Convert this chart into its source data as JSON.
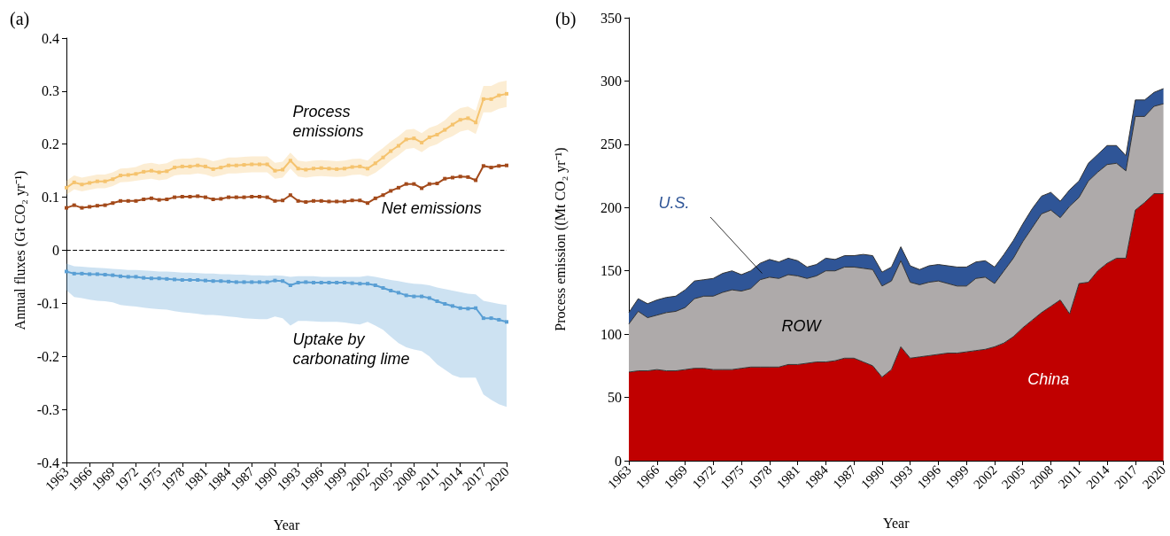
{
  "chart_data": [
    {
      "type": "line",
      "title": "(a)",
      "xlabel": "Year",
      "ylabel": "Annual fluxes (Gt CO₂ yr⁻¹)",
      "categories": [
        "1963",
        null,
        null,
        "1966",
        null,
        null,
        "1969",
        null,
        null,
        "1972",
        null,
        null,
        "1975",
        null,
        null,
        "1978",
        null,
        null,
        "1981",
        null,
        null,
        "1984",
        null,
        null,
        "1987",
        null,
        null,
        "1990",
        null,
        null,
        "1993",
        null,
        null,
        "1996",
        null,
        null,
        "1999",
        null,
        null,
        "2002",
        null,
        null,
        "2005",
        null,
        null,
        "2008",
        null,
        null,
        "2011",
        null,
        null,
        "2014",
        null,
        null,
        "2017",
        null,
        null,
        "2020"
      ],
      "ylim": [
        -0.4,
        0.4
      ],
      "yticks": [
        -0.4,
        -0.3,
        -0.2,
        -0.1,
        0,
        0.1,
        0.2,
        0.3,
        0.4
      ],
      "marker": "square",
      "legend": false,
      "ref_lines": [
        {
          "axis": "y",
          "value": 0,
          "line_style": "dashed",
          "color": "#000000"
        }
      ],
      "series": [
        {
          "name": "Process emissions",
          "color": "#f5c36e",
          "values": [
            0.118,
            0.128,
            0.124,
            0.127,
            0.13,
            0.13,
            0.134,
            0.141,
            0.142,
            0.144,
            0.148,
            0.15,
            0.147,
            0.149,
            0.156,
            0.158,
            0.158,
            0.16,
            0.158,
            0.153,
            0.156,
            0.16,
            0.16,
            0.161,
            0.162,
            0.162,
            0.162,
            0.15,
            0.152,
            0.169,
            0.154,
            0.152,
            0.154,
            0.155,
            0.154,
            0.153,
            0.154,
            0.157,
            0.158,
            0.154,
            0.164,
            0.175,
            0.187,
            0.197,
            0.209,
            0.211,
            0.203,
            0.213,
            0.218,
            0.227,
            0.237,
            0.246,
            0.249,
            0.241,
            0.285,
            0.285,
            0.292,
            0.295
          ],
          "lower": [
            0.105,
            0.115,
            0.111,
            0.114,
            0.117,
            0.117,
            0.121,
            0.128,
            0.129,
            0.131,
            0.133,
            0.135,
            0.132,
            0.134,
            0.141,
            0.143,
            0.143,
            0.145,
            0.143,
            0.138,
            0.141,
            0.145,
            0.145,
            0.146,
            0.147,
            0.147,
            0.147,
            0.135,
            0.137,
            0.154,
            0.139,
            0.137,
            0.139,
            0.14,
            0.139,
            0.138,
            0.139,
            0.142,
            0.143,
            0.139,
            0.146,
            0.157,
            0.169,
            0.179,
            0.191,
            0.193,
            0.185,
            0.195,
            0.2,
            0.209,
            0.215,
            0.224,
            0.227,
            0.219,
            0.26,
            0.26,
            0.267,
            0.27
          ],
          "upper": [
            0.131,
            0.141,
            0.137,
            0.14,
            0.143,
            0.143,
            0.147,
            0.154,
            0.155,
            0.157,
            0.163,
            0.165,
            0.162,
            0.164,
            0.171,
            0.173,
            0.173,
            0.175,
            0.173,
            0.168,
            0.171,
            0.175,
            0.175,
            0.176,
            0.177,
            0.177,
            0.177,
            0.165,
            0.167,
            0.184,
            0.169,
            0.167,
            0.169,
            0.17,
            0.169,
            0.168,
            0.169,
            0.172,
            0.173,
            0.169,
            0.182,
            0.193,
            0.205,
            0.215,
            0.227,
            0.229,
            0.221,
            0.231,
            0.236,
            0.245,
            0.259,
            0.268,
            0.271,
            0.263,
            0.31,
            0.31,
            0.317,
            0.32
          ]
        },
        {
          "name": "Net emissions",
          "color": "#a34a1b",
          "values": [
            0.08,
            0.085,
            0.08,
            0.082,
            0.084,
            0.085,
            0.089,
            0.093,
            0.093,
            0.093,
            0.096,
            0.098,
            0.095,
            0.096,
            0.1,
            0.101,
            0.101,
            0.102,
            0.1,
            0.096,
            0.097,
            0.1,
            0.1,
            0.1,
            0.101,
            0.101,
            0.1,
            0.093,
            0.094,
            0.104,
            0.093,
            0.091,
            0.093,
            0.093,
            0.092,
            0.092,
            0.092,
            0.094,
            0.094,
            0.089,
            0.098,
            0.104,
            0.112,
            0.118,
            0.125,
            0.125,
            0.117,
            0.125,
            0.126,
            0.135,
            0.137,
            0.139,
            0.138,
            0.132,
            0.159,
            0.156,
            0.159,
            0.16
          ]
        },
        {
          "name": "Uptake by carbonating lime",
          "color": "#5a9fd4",
          "values": [
            -0.04,
            -0.044,
            -0.044,
            -0.045,
            -0.045,
            -0.046,
            -0.047,
            -0.049,
            -0.05,
            -0.05,
            -0.052,
            -0.053,
            -0.053,
            -0.054,
            -0.055,
            -0.056,
            -0.056,
            -0.056,
            -0.057,
            -0.058,
            -0.058,
            -0.059,
            -0.06,
            -0.06,
            -0.06,
            -0.06,
            -0.06,
            -0.057,
            -0.058,
            -0.066,
            -0.061,
            -0.06,
            -0.061,
            -0.061,
            -0.061,
            -0.061,
            -0.061,
            -0.062,
            -0.063,
            -0.063,
            -0.066,
            -0.071,
            -0.076,
            -0.08,
            -0.085,
            -0.087,
            -0.087,
            -0.09,
            -0.096,
            -0.101,
            -0.105,
            -0.109,
            -0.11,
            -0.109,
            -0.128,
            -0.128,
            -0.131,
            -0.135
          ],
          "lower": [
            -0.075,
            -0.088,
            -0.09,
            -0.093,
            -0.095,
            -0.096,
            -0.098,
            -0.103,
            -0.105,
            -0.106,
            -0.108,
            -0.11,
            -0.111,
            -0.112,
            -0.115,
            -0.117,
            -0.118,
            -0.12,
            -0.122,
            -0.122,
            -0.123,
            -0.125,
            -0.126,
            -0.128,
            -0.129,
            -0.13,
            -0.13,
            -0.125,
            -0.128,
            -0.142,
            -0.133,
            -0.133,
            -0.134,
            -0.135,
            -0.135,
            -0.135,
            -0.136,
            -0.138,
            -0.14,
            -0.135,
            -0.142,
            -0.15,
            -0.163,
            -0.175,
            -0.183,
            -0.187,
            -0.19,
            -0.2,
            -0.215,
            -0.225,
            -0.235,
            -0.24,
            -0.24,
            -0.24,
            -0.272,
            -0.282,
            -0.29,
            -0.295
          ],
          "upper": [
            -0.025,
            -0.03,
            -0.031,
            -0.032,
            -0.033,
            -0.034,
            -0.035,
            -0.036,
            -0.037,
            -0.037,
            -0.038,
            -0.039,
            -0.04,
            -0.04,
            -0.041,
            -0.042,
            -0.042,
            -0.043,
            -0.044,
            -0.044,
            -0.045,
            -0.045,
            -0.046,
            -0.046,
            -0.047,
            -0.047,
            -0.048,
            -0.047,
            -0.048,
            -0.05,
            -0.049,
            -0.049,
            -0.049,
            -0.05,
            -0.05,
            -0.05,
            -0.05,
            -0.05,
            -0.05,
            -0.048,
            -0.05,
            -0.053,
            -0.056,
            -0.058,
            -0.061,
            -0.063,
            -0.064,
            -0.066,
            -0.07,
            -0.073,
            -0.076,
            -0.079,
            -0.082,
            -0.083,
            -0.095,
            -0.098,
            -0.101,
            -0.103
          ]
        }
      ]
    },
    {
      "type": "area",
      "title": "(b)",
      "xlabel": "Year",
      "ylabel": "Process emission ((Mt CO₂ yr⁻¹)",
      "stacked": true,
      "legend": false,
      "categories": [
        "1963",
        null,
        null,
        "1966",
        null,
        null,
        "1969",
        null,
        null,
        "1972",
        null,
        null,
        "1975",
        null,
        null,
        "1978",
        null,
        null,
        "1981",
        null,
        null,
        "1984",
        null,
        null,
        "1987",
        null,
        null,
        "1990",
        null,
        null,
        "1993",
        null,
        null,
        "1996",
        null,
        null,
        "1999",
        null,
        null,
        "2002",
        null,
        null,
        "2005",
        null,
        null,
        "2008",
        null,
        null,
        "2011",
        null,
        null,
        "2014",
        null,
        null,
        "2017",
        null,
        null,
        "2020"
      ],
      "ylim": [
        0,
        350
      ],
      "yticks": [
        0,
        50,
        100,
        150,
        200,
        250,
        300,
        350
      ],
      "series": [
        {
          "name": "China",
          "color": "#c00000",
          "values": [
            70,
            71,
            71,
            72,
            71,
            71,
            72,
            73,
            73,
            72,
            72,
            72,
            73,
            74,
            74,
            74,
            74,
            76,
            76,
            77,
            78,
            78,
            79,
            81,
            81,
            78,
            75,
            66,
            72,
            90,
            81,
            82,
            83,
            84,
            85,
            85,
            86,
            87,
            88,
            90,
            93,
            98,
            105,
            111,
            117,
            122,
            127,
            116,
            140,
            141,
            150,
            156,
            160,
            160,
            198,
            204,
            211,
            211
          ]
        },
        {
          "name": "ROW",
          "color": "#aeaaaa",
          "values": [
            38,
            47,
            42,
            43,
            46,
            47,
            49,
            55,
            57,
            58,
            61,
            63,
            61,
            62,
            69,
            71,
            70,
            71,
            70,
            67,
            68,
            72,
            71,
            72,
            72,
            74,
            76,
            72,
            70,
            68,
            60,
            57,
            58,
            58,
            55,
            53,
            52,
            57,
            57,
            50,
            57,
            62,
            68,
            73,
            78,
            76,
            65,
            85,
            68,
            80,
            78,
            78,
            75,
            69,
            74,
            68,
            69,
            71
          ]
        },
        {
          "name": "U.S.",
          "color": "#2f5597",
          "values": [
            9,
            10,
            11,
            12,
            12,
            12,
            14,
            14,
            13,
            14,
            15,
            15,
            13,
            14,
            13,
            14,
            13,
            13,
            12,
            9,
            9,
            10,
            9,
            9,
            9,
            11,
            11,
            11,
            11,
            11,
            13,
            12,
            13,
            13,
            14,
            15,
            15,
            13,
            13,
            13,
            13,
            14,
            14,
            15,
            14,
            14,
            13,
            13,
            13,
            14,
            14,
            15,
            14,
            12,
            13,
            13,
            11,
            12
          ]
        }
      ]
    }
  ]
}
